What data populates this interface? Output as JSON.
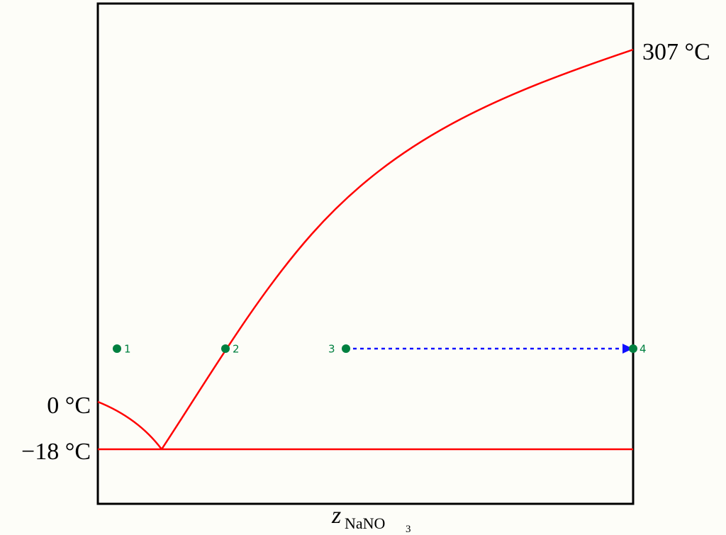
{
  "labels": {
    "top": "307 °C",
    "zero": "0 °C",
    "eutectic": "−18 °C"
  },
  "axis": {
    "x_symbol": "z",
    "x_subscript": "NaNO",
    "x_subscript_index": "3"
  },
  "points": [
    {
      "label": "1"
    },
    {
      "label": "2"
    },
    {
      "label": "3"
    },
    {
      "label": "4"
    }
  ]
}
